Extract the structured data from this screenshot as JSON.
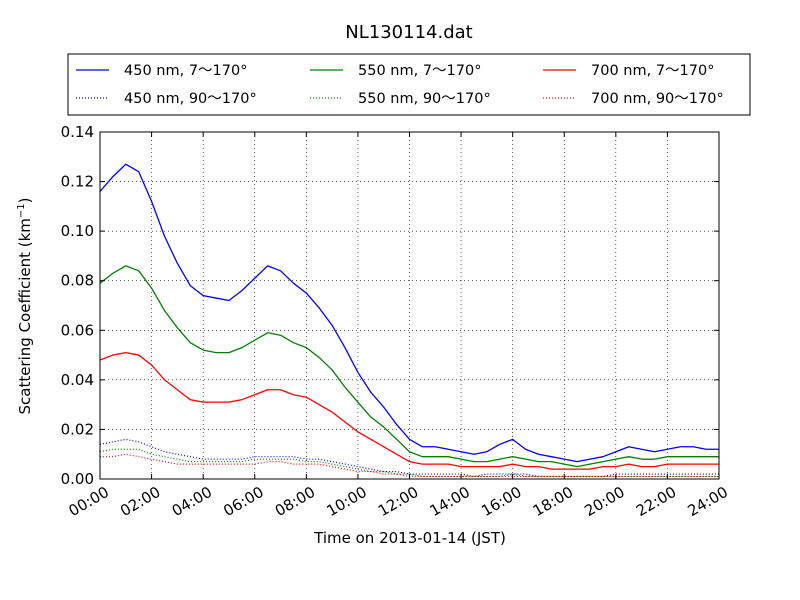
{
  "chart_data": {
    "type": "line",
    "title": "NL130114.dat",
    "xlabel": "Time on 2013-01-14 (JST)",
    "ylabel": "Scattering Coefficient (km",
    "ylabel_superscript": "−1",
    "ylabel_suffix": ")",
    "xlim": [
      0,
      24
    ],
    "ylim": [
      0,
      0.14
    ],
    "x_unit": "hours",
    "grid": true,
    "grid_style": "dotted",
    "legend_position": "top",
    "legend_columns": 3,
    "x_tick_labels": [
      "00:00",
      "02:00",
      "04:00",
      "06:00",
      "08:00",
      "10:00",
      "12:00",
      "14:00",
      "16:00",
      "18:00",
      "20:00",
      "22:00",
      "24:00"
    ],
    "x_ticks": [
      0,
      2,
      4,
      6,
      8,
      10,
      12,
      14,
      16,
      18,
      20,
      22,
      24
    ],
    "y_ticks": [
      0,
      0.02,
      0.04,
      0.06,
      0.08,
      0.1,
      0.12,
      0.14
    ],
    "y_tick_labels": [
      "0.00",
      "0.02",
      "0.04",
      "0.06",
      "0.08",
      "0.10",
      "0.12",
      "0.14"
    ],
    "x": [
      0,
      0.5,
      1,
      1.5,
      2,
      2.5,
      3,
      3.5,
      4,
      4.5,
      5,
      5.5,
      6,
      6.5,
      7,
      7.5,
      8,
      8.5,
      9,
      9.5,
      10,
      10.5,
      11,
      11.5,
      12,
      12.5,
      13,
      13.5,
      14,
      14.5,
      15,
      15.5,
      16,
      16.5,
      17,
      17.5,
      18,
      18.5,
      19,
      19.5,
      20,
      20.5,
      21,
      21.5,
      22,
      22.5,
      23,
      23.5,
      24
    ],
    "series": [
      {
        "name": "450 nm, 7～170°",
        "color": "#0000ff",
        "style": "solid",
        "values": [
          0.116,
          0.122,
          0.127,
          0.124,
          0.112,
          0.098,
          0.087,
          0.078,
          0.074,
          0.073,
          0.072,
          0.076,
          0.081,
          0.086,
          0.084,
          0.079,
          0.075,
          0.069,
          0.062,
          0.053,
          0.043,
          0.035,
          0.029,
          0.022,
          0.016,
          0.013,
          0.013,
          0.012,
          0.011,
          0.01,
          0.011,
          0.014,
          0.016,
          0.012,
          0.01,
          0.009,
          0.008,
          0.007,
          0.008,
          0.009,
          0.011,
          0.013,
          0.012,
          0.011,
          0.012,
          0.013,
          0.013,
          0.012,
          0.012
        ]
      },
      {
        "name": "550 nm, 7～170°",
        "color": "#008000",
        "style": "solid",
        "values": [
          0.079,
          0.083,
          0.086,
          0.084,
          0.077,
          0.068,
          0.061,
          0.055,
          0.052,
          0.051,
          0.051,
          0.053,
          0.056,
          0.059,
          0.058,
          0.055,
          0.053,
          0.049,
          0.044,
          0.037,
          0.031,
          0.025,
          0.021,
          0.016,
          0.011,
          0.009,
          0.009,
          0.009,
          0.008,
          0.007,
          0.007,
          0.008,
          0.009,
          0.008,
          0.007,
          0.007,
          0.006,
          0.005,
          0.006,
          0.007,
          0.008,
          0.009,
          0.008,
          0.008,
          0.009,
          0.009,
          0.009,
          0.009,
          0.009
        ]
      },
      {
        "name": "700 nm, 7～170°",
        "color": "#ff0000",
        "style": "solid",
        "values": [
          0.048,
          0.05,
          0.051,
          0.05,
          0.046,
          0.04,
          0.036,
          0.032,
          0.031,
          0.031,
          0.031,
          0.032,
          0.034,
          0.036,
          0.036,
          0.034,
          0.033,
          0.03,
          0.027,
          0.023,
          0.019,
          0.016,
          0.013,
          0.01,
          0.007,
          0.006,
          0.006,
          0.006,
          0.005,
          0.005,
          0.005,
          0.005,
          0.006,
          0.005,
          0.005,
          0.004,
          0.004,
          0.004,
          0.004,
          0.005,
          0.005,
          0.006,
          0.005,
          0.005,
          0.006,
          0.006,
          0.006,
          0.006,
          0.006
        ]
      },
      {
        "name": "450 nm, 90～170°",
        "color": "#0000ff",
        "style": "dotted",
        "values": [
          0.014,
          0.015,
          0.016,
          0.015,
          0.013,
          0.011,
          0.01,
          0.009,
          0.008,
          0.008,
          0.008,
          0.008,
          0.009,
          0.009,
          0.009,
          0.009,
          0.008,
          0.008,
          0.007,
          0.006,
          0.005,
          0.004,
          0.003,
          0.003,
          0.002,
          0.002,
          0.002,
          0.002,
          0.002,
          0.001,
          0.002,
          0.002,
          0.002,
          0.002,
          0.001,
          0.001,
          0.001,
          0.001,
          0.001,
          0.001,
          0.002,
          0.002,
          0.002,
          0.002,
          0.002,
          0.002,
          0.002,
          0.002,
          0.002
        ]
      },
      {
        "name": "550 nm, 90～170°",
        "color": "#008000",
        "style": "dotted",
        "values": [
          0.011,
          0.012,
          0.012,
          0.012,
          0.01,
          0.009,
          0.008,
          0.007,
          0.007,
          0.007,
          0.007,
          0.007,
          0.008,
          0.008,
          0.008,
          0.008,
          0.007,
          0.007,
          0.006,
          0.005,
          0.004,
          0.003,
          0.003,
          0.002,
          0.002,
          0.001,
          0.001,
          0.001,
          0.001,
          0.001,
          0.001,
          0.001,
          0.002,
          0.001,
          0.001,
          0.001,
          0.001,
          0.001,
          0.001,
          0.001,
          0.001,
          0.001,
          0.001,
          0.001,
          0.001,
          0.001,
          0.001,
          0.001,
          0.001
        ]
      },
      {
        "name": "700 nm, 90～170°",
        "color": "#ff0000",
        "style": "dotted",
        "values": [
          0.009,
          0.009,
          0.01,
          0.009,
          0.008,
          0.007,
          0.006,
          0.006,
          0.006,
          0.006,
          0.006,
          0.006,
          0.006,
          0.007,
          0.007,
          0.006,
          0.006,
          0.006,
          0.005,
          0.004,
          0.003,
          0.003,
          0.002,
          0.002,
          0.001,
          0.001,
          0.001,
          0.001,
          0.001,
          0.001,
          0.001,
          0.001,
          0.001,
          0.001,
          0.001,
          0.001,
          0.001,
          0.001,
          0.001,
          0.001,
          0.001,
          0.001,
          0.001,
          0.001,
          0.001,
          0.001,
          0.001,
          0.001,
          0.001
        ]
      }
    ],
    "legend_order": [
      0,
      1,
      2,
      3,
      4,
      5
    ]
  }
}
